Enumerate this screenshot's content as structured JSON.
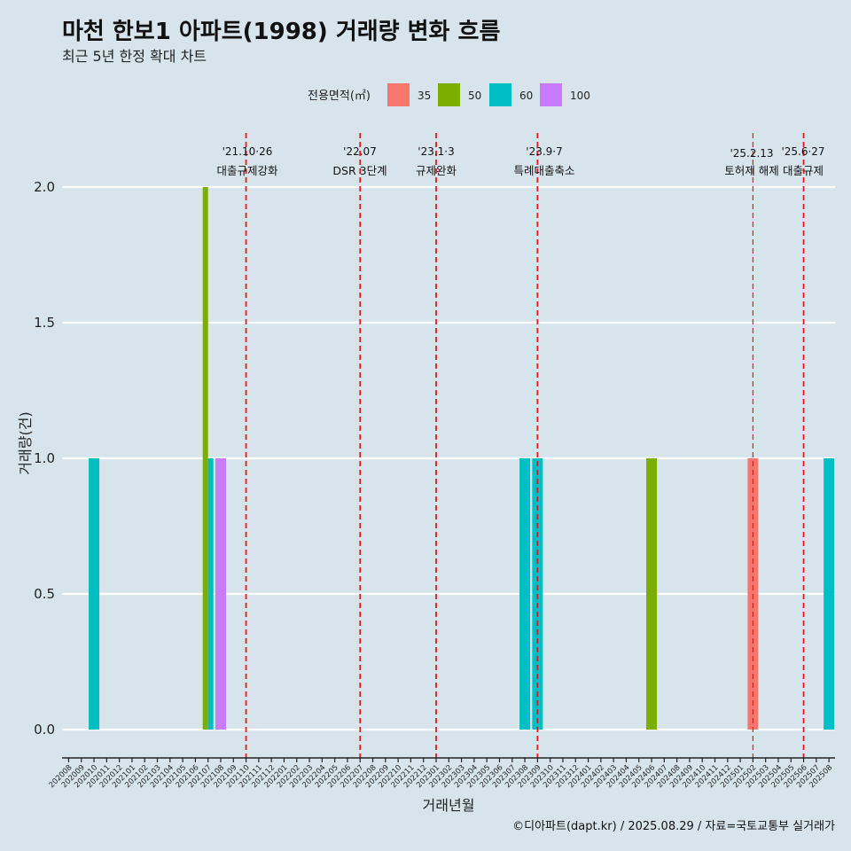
{
  "title": "마천 한보1 아파트(1998) 거래량 변화 흐름",
  "subtitle": "최근 5년 한정 확대 차트",
  "caption": "©디아파트(dapt.kr) / 2025.08.29 / 자료=국토교통부 실거래가",
  "legend": {
    "title": "전용면적(㎡)",
    "items": [
      {
        "label": "35",
        "color": "#f8766d"
      },
      {
        "label": "50",
        "color": "#7cae00"
      },
      {
        "label": "60",
        "color": "#00bfc4"
      },
      {
        "label": "100",
        "color": "#c77cff"
      }
    ]
  },
  "chart_data": {
    "type": "bar",
    "title": "마천 한보1 아파트(1998) 거래량 변화 흐름",
    "xlabel": "거래년월",
    "ylabel": "거래량(건)",
    "ylim": [
      0,
      2
    ],
    "yticks": [
      "0.0",
      "0.5",
      "1.0",
      "1.5",
      "2.0"
    ],
    "yticks_values": [
      0,
      0.5,
      1.0,
      1.5,
      2.0
    ],
    "categories": [
      "202008",
      "202009",
      "202010",
      "202011",
      "202012",
      "202101",
      "202102",
      "202103",
      "202104",
      "202105",
      "202106",
      "202107",
      "202108",
      "202109",
      "202110",
      "202111",
      "202112",
      "202201",
      "202202",
      "202203",
      "202204",
      "202205",
      "202206",
      "202207",
      "202208",
      "202209",
      "202210",
      "202211",
      "202212",
      "202301",
      "202302",
      "202303",
      "202304",
      "202305",
      "202306",
      "202307",
      "202308",
      "202309",
      "202310",
      "202311",
      "202312",
      "202401",
      "202402",
      "202403",
      "202404",
      "202405",
      "202406",
      "202407",
      "202408",
      "202409",
      "202410",
      "202411",
      "202412",
      "202501",
      "202502",
      "202503",
      "202504",
      "202505",
      "202506",
      "202507",
      "202508"
    ],
    "series": [
      {
        "name": "35",
        "color": "#f8766d",
        "points": [
          {
            "x": "202502",
            "y": 1
          }
        ]
      },
      {
        "name": "50",
        "color": "#7cae00",
        "points": [
          {
            "x": "202107",
            "y": 2
          },
          {
            "x": "202406",
            "y": 1
          }
        ]
      },
      {
        "name": "60",
        "color": "#00bfc4",
        "points": [
          {
            "x": "202010",
            "y": 1
          },
          {
            "x": "202107",
            "y": 1
          },
          {
            "x": "202308",
            "y": 1
          },
          {
            "x": "202309",
            "y": 1
          },
          {
            "x": "202508",
            "y": 1
          }
        ]
      },
      {
        "name": "100",
        "color": "#c77cff",
        "points": [
          {
            "x": "202108",
            "y": 1
          }
        ]
      }
    ],
    "events": [
      {
        "x": "202110",
        "date": "'21.10·26",
        "label": "대출규제강화"
      },
      {
        "x": "202207",
        "date": "'22.07",
        "label": "DSR 3단계"
      },
      {
        "x": "202301",
        "date": "'23.1·3",
        "label": "규제완화"
      },
      {
        "x": "202309",
        "date": "'23.9·7",
        "label": "특례대출축소"
      },
      {
        "x": "202502",
        "date": "'25.2.13",
        "label": "토허제 해제"
      },
      {
        "x": "202506",
        "date": "'25.6·27",
        "label": "대출규제"
      }
    ]
  }
}
